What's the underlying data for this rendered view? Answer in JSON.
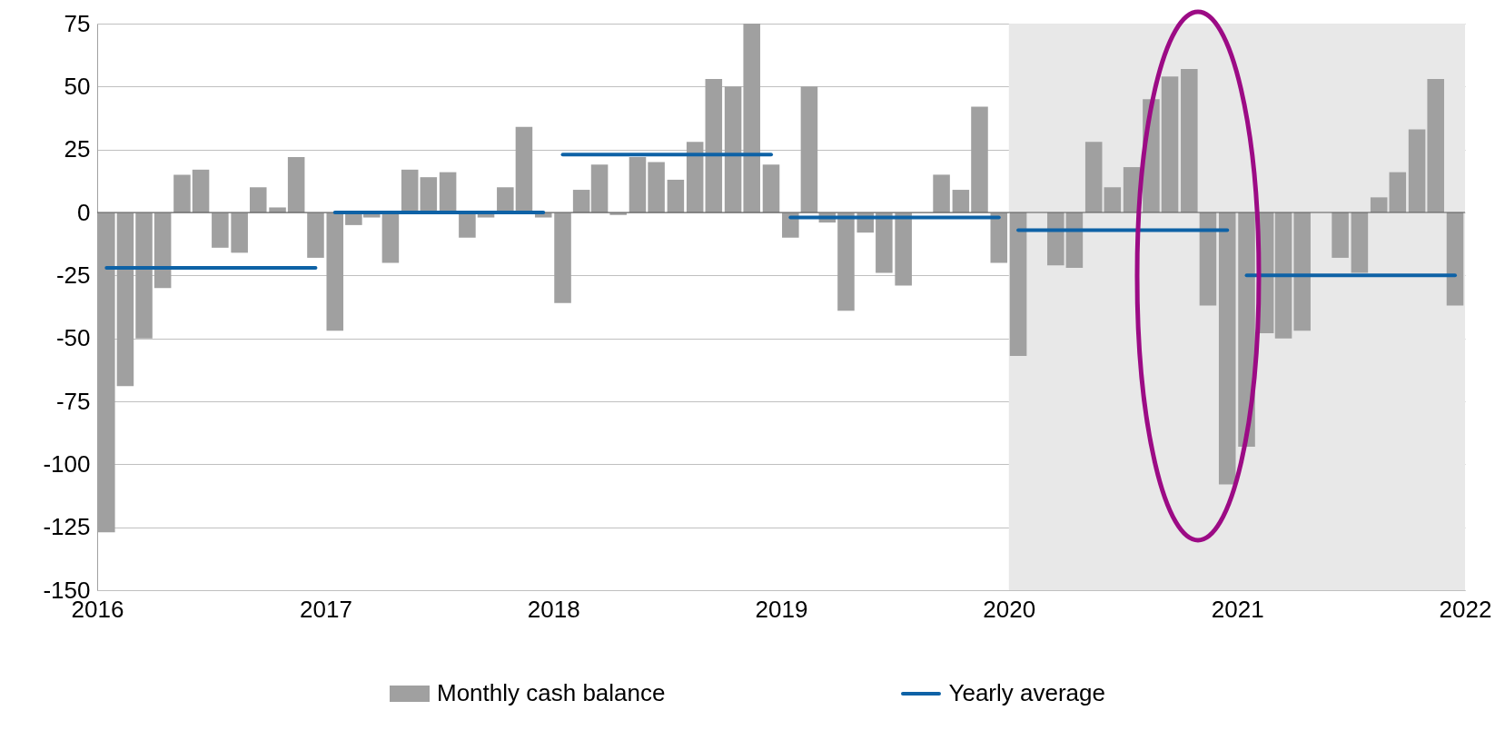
{
  "chart_data": {
    "type": "bar",
    "x": [
      "2016-01-16",
      "2016-02-15",
      "2016-03-16",
      "2016-04-15",
      "2016-05-16",
      "2016-06-15",
      "2016-07-16",
      "2016-08-16",
      "2016-09-15",
      "2016-10-16",
      "2016-11-15",
      "2016-12-16",
      "2017-01-16",
      "2017-02-15",
      "2017-03-16",
      "2017-04-15",
      "2017-05-16",
      "2017-06-15",
      "2017-07-16",
      "2017-08-16",
      "2017-09-15",
      "2017-10-16",
      "2017-11-15",
      "2017-12-16",
      "2018-01-16",
      "2018-02-15",
      "2018-03-16",
      "2018-04-15",
      "2018-05-16",
      "2018-06-15",
      "2018-07-16",
      "2018-08-16",
      "2018-09-15",
      "2018-10-16",
      "2018-11-15",
      "2018-12-16",
      "2019-01-16",
      "2019-02-15",
      "2019-03-16",
      "2019-04-15",
      "2019-05-16",
      "2019-06-15",
      "2019-07-16",
      "2019-08-16",
      "2019-09-15",
      "2019-10-16",
      "2019-11-15",
      "2019-12-16",
      "2020-01-16",
      "2020-02-15",
      "2020-03-16",
      "2020-04-15",
      "2020-05-16",
      "2020-06-15",
      "2020-07-16",
      "2020-08-16",
      "2020-09-15",
      "2020-10-16",
      "2020-11-15",
      "2020-12-16",
      "2021-01-16",
      "2021-02-15",
      "2021-03-16",
      "2021-04-15",
      "2021-05-16",
      "2021-06-15",
      "2021-07-16",
      "2021-08-16",
      "2021-09-15",
      "2021-10-16",
      "2021-11-15",
      "2021-12-16"
    ],
    "series": [
      {
        "name": "Monthly cash balance",
        "color": "#a0a0a0",
        "values": [
          -127,
          -69,
          -50,
          -30,
          15,
          17,
          -14,
          -16,
          10,
          2,
          22,
          -18,
          -47,
          -5,
          -2,
          -20,
          17,
          14,
          16,
          -10,
          -2,
          10,
          34,
          -2,
          -36,
          9,
          19,
          -1,
          22,
          20,
          13,
          28,
          53,
          50,
          75,
          19,
          -10,
          50,
          -4,
          -39,
          -8,
          -24,
          -29,
          0,
          15,
          9,
          42,
          -20,
          -57,
          0,
          -21,
          -22,
          28,
          10,
          18,
          45,
          54,
          57,
          -37,
          -108,
          -93,
          -48,
          -50,
          -47,
          0,
          -18,
          -24,
          6,
          16,
          33,
          53,
          -37
        ]
      },
      {
        "name": "Yearly average",
        "type": "line",
        "color": "#0e62a6",
        "values": [
          -22,
          -22,
          -22,
          -22,
          -22,
          -22,
          -22,
          -22,
          -22,
          -22,
          -22,
          -22,
          0,
          0,
          0,
          0,
          0,
          0,
          0,
          0,
          0,
          0,
          0,
          0,
          23,
          23,
          23,
          23,
          23,
          23,
          23,
          23,
          23,
          23,
          23,
          23,
          -2,
          -2,
          -2,
          -2,
          -2,
          -2,
          -2,
          -2,
          -2,
          -2,
          -2,
          -2,
          -7,
          -7,
          -7,
          -7,
          -7,
          -7,
          -7,
          -7,
          -7,
          -7,
          -7,
          -7,
          -25,
          -25,
          -25,
          -25,
          -25,
          -25,
          -25,
          -25,
          -25,
          -25,
          -25,
          -25
        ]
      }
    ],
    "xlim": [
      "2016-01",
      "2022-01"
    ],
    "xticks": [
      "2016",
      "2017",
      "2018",
      "2019",
      "2020",
      "2021",
      "2022"
    ],
    "ylim": [
      -150,
      75
    ],
    "yticks": [
      -150,
      -125,
      -100,
      -75,
      -50,
      -25,
      0,
      25,
      50,
      75
    ],
    "bands": [
      {
        "axis": "x",
        "from": "2020-01",
        "to": "2022-01",
        "color": "#e8e8e8"
      }
    ],
    "ref_lines": [
      {
        "axis": "y",
        "value": 0,
        "color": "#595959"
      }
    ],
    "grid": "y",
    "legend": "bottom"
  }
}
